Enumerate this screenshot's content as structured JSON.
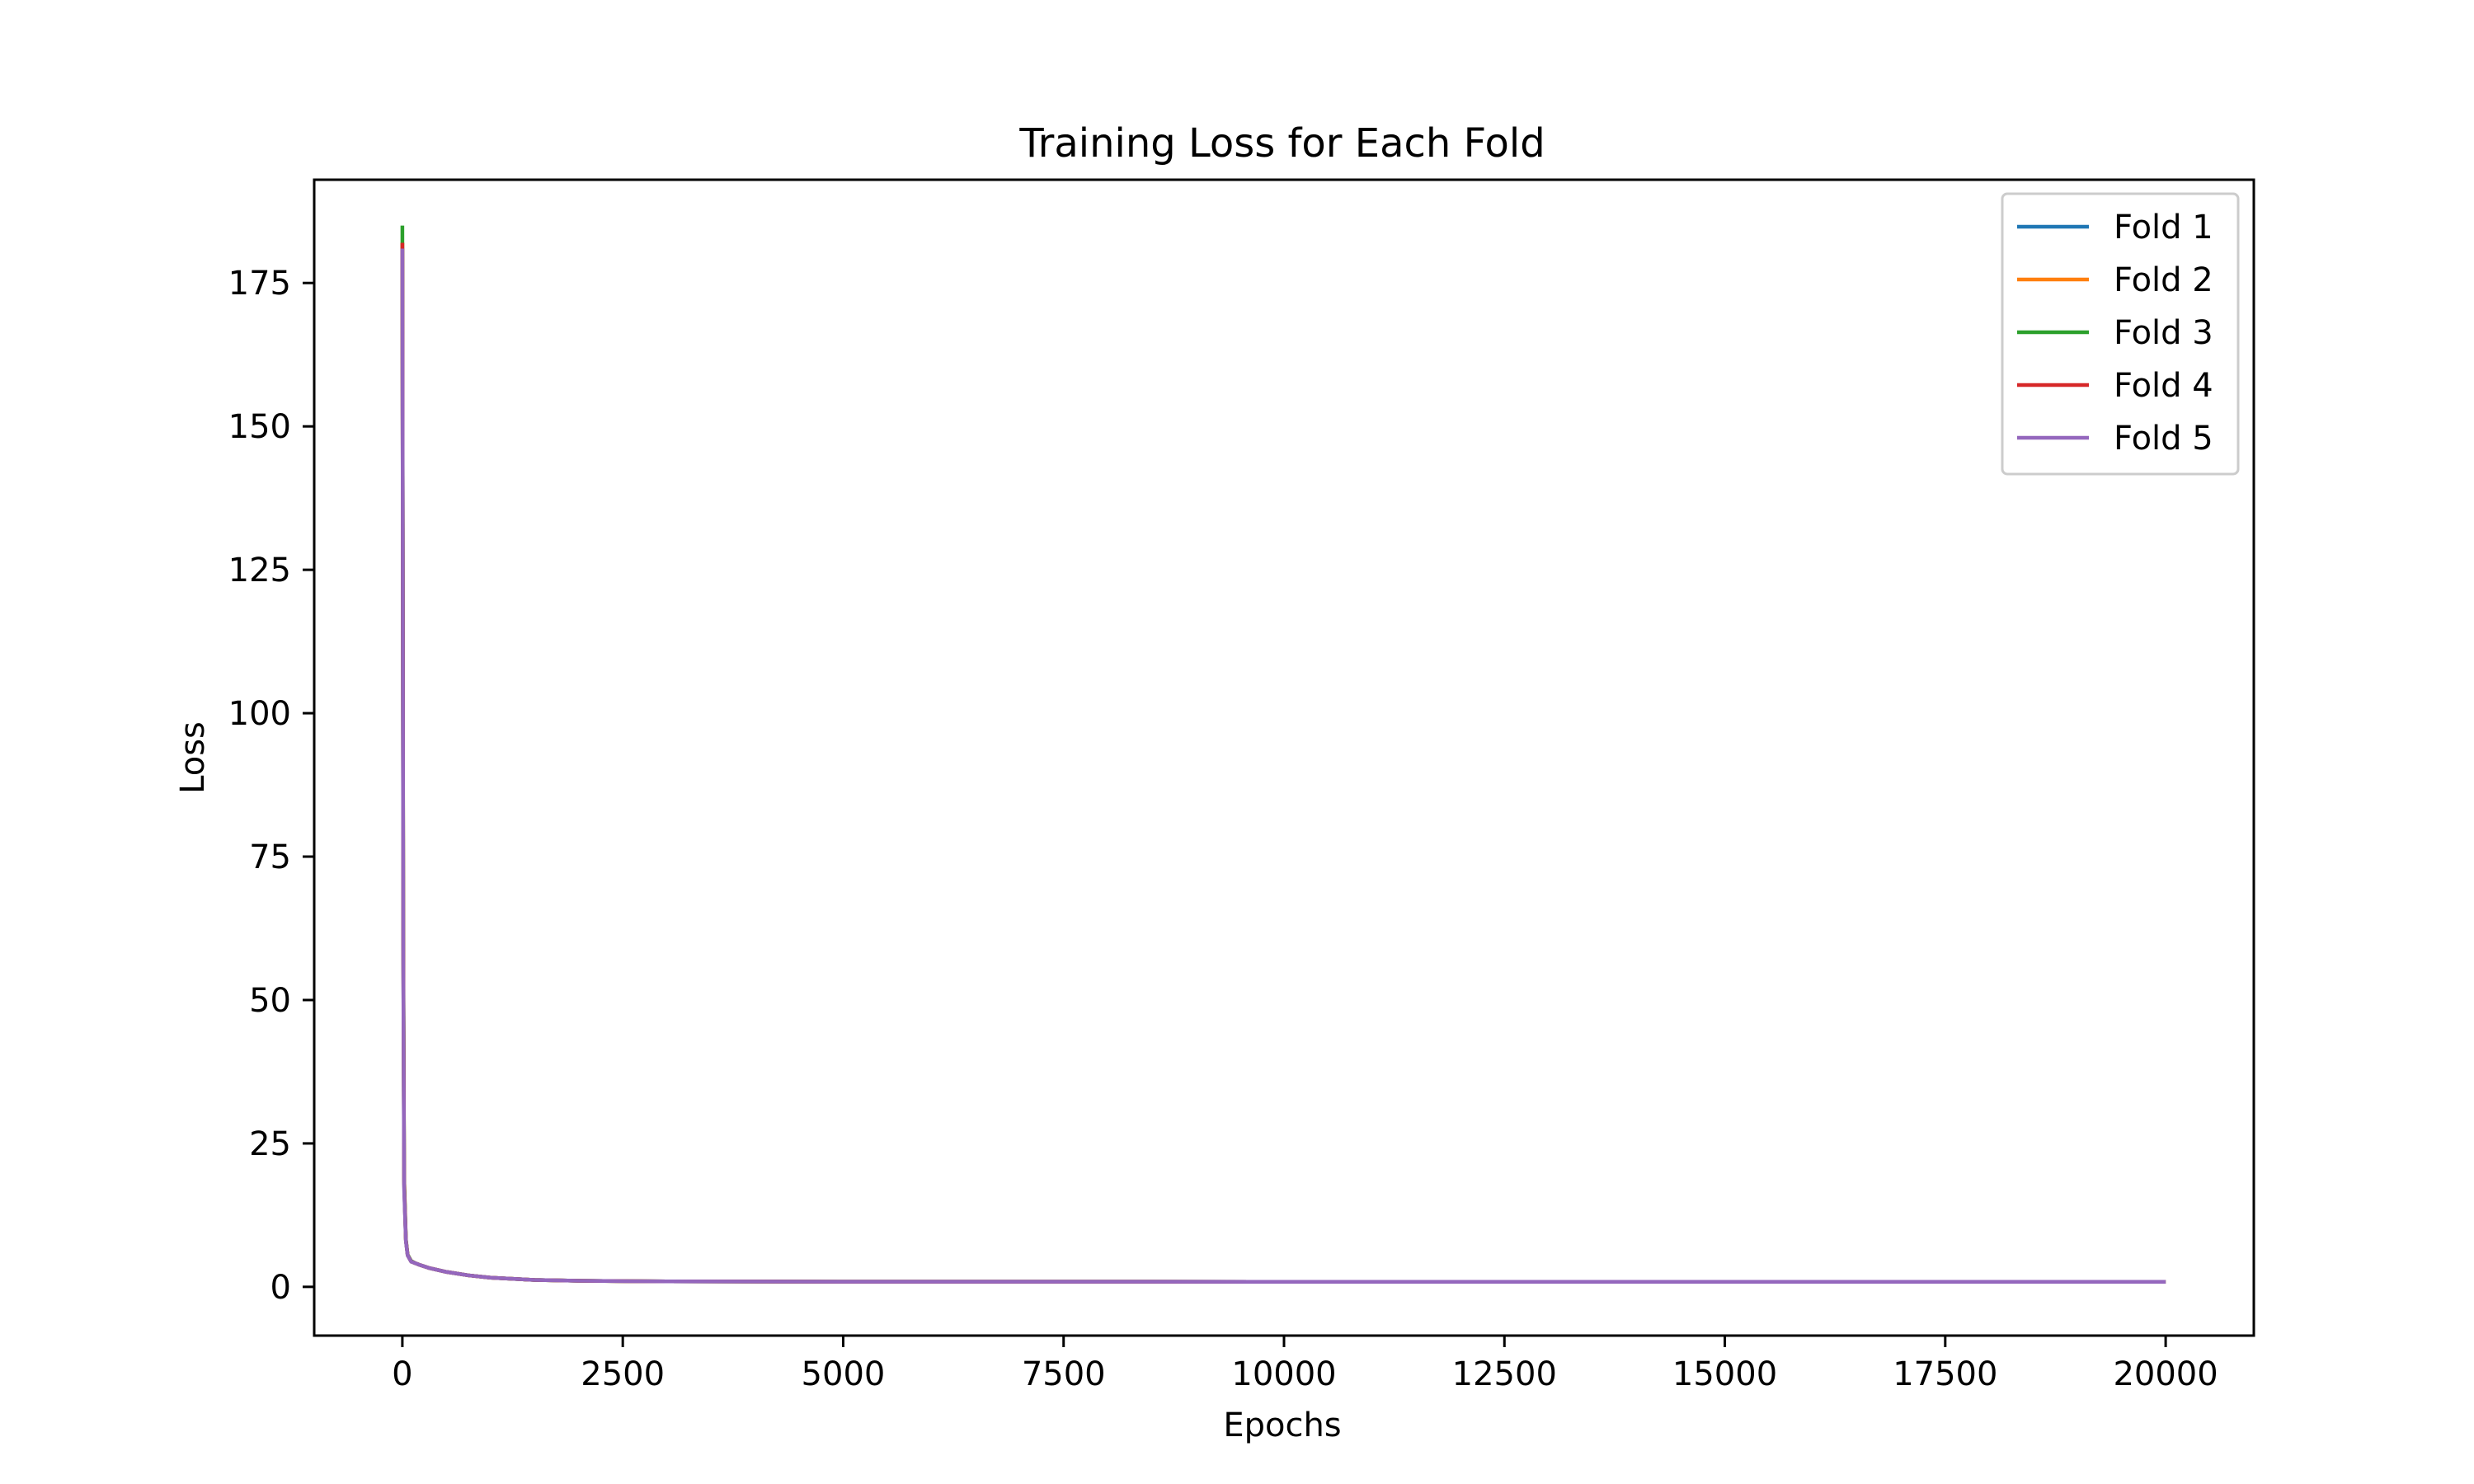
{
  "chart_data": {
    "type": "line",
    "title": "Training Loss for Each Fold",
    "xlabel": "Epochs",
    "ylabel": "Loss",
    "xlim": [
      -1000,
      21000
    ],
    "ylim": [
      -8.5,
      193
    ],
    "xticks": [
      0,
      2500,
      5000,
      7500,
      10000,
      12500,
      15000,
      17500,
      20000
    ],
    "yticks": [
      0,
      25,
      50,
      75,
      100,
      125,
      150,
      175
    ],
    "xtick_labels": [
      "0",
      "2500",
      "5000",
      "7500",
      "10000",
      "12500",
      "15000",
      "17500",
      "20000"
    ],
    "ytick_labels": [
      "0",
      "25",
      "50",
      "75",
      "100",
      "125",
      "150",
      "175"
    ],
    "grid": false,
    "legend_position": "top-right",
    "series": [
      {
        "name": "Fold 1",
        "color": "#1f77b4",
        "x": [
          0,
          10,
          20,
          40,
          60,
          100,
          150,
          200,
          300,
          500,
          750,
          1000,
          1500,
          2000,
          3000,
          5000,
          7500,
          10000,
          12500,
          15000,
          17500,
          20000
        ],
        "y": [
          181,
          60,
          18,
          8,
          5.5,
          4.4,
          4.1,
          3.8,
          3.3,
          2.6,
          2.0,
          1.6,
          1.2,
          1.05,
          0.95,
          0.9,
          0.9,
          0.88,
          0.88,
          0.87,
          0.87,
          0.87
        ]
      },
      {
        "name": "Fold 2",
        "color": "#ff7f0e",
        "x": [
          0,
          10,
          20,
          40,
          60,
          100,
          150,
          200,
          300,
          500,
          750,
          1000,
          1500,
          2000,
          3000,
          5000,
          7500,
          10000,
          12500,
          15000,
          17500,
          20000
        ],
        "y": [
          182,
          62,
          19,
          8.2,
          5.6,
          4.5,
          4.1,
          3.8,
          3.3,
          2.6,
          2.0,
          1.6,
          1.2,
          1.05,
          0.95,
          0.9,
          0.9,
          0.88,
          0.88,
          0.87,
          0.87,
          0.87
        ]
      },
      {
        "name": "Fold 3",
        "color": "#2ca02c",
        "x": [
          0,
          10,
          20,
          40,
          60,
          100,
          150,
          200,
          300,
          500,
          750,
          1000,
          1500,
          2000,
          3000,
          5000,
          7500,
          10000,
          12500,
          15000,
          17500,
          20000
        ],
        "y": [
          185,
          64,
          19,
          8.3,
          5.6,
          4.5,
          4.1,
          3.8,
          3.3,
          2.6,
          2.0,
          1.6,
          1.2,
          1.05,
          0.95,
          0.9,
          0.9,
          0.88,
          0.88,
          0.87,
          0.87,
          0.87
        ]
      },
      {
        "name": "Fold 4",
        "color": "#d62728",
        "x": [
          0,
          10,
          20,
          40,
          60,
          100,
          150,
          200,
          300,
          500,
          750,
          1000,
          1500,
          2000,
          3000,
          5000,
          7500,
          10000,
          12500,
          15000,
          17500,
          20000
        ],
        "y": [
          182,
          61,
          18,
          8.1,
          5.5,
          4.4,
          4.1,
          3.8,
          3.3,
          2.6,
          2.0,
          1.6,
          1.2,
          1.05,
          0.95,
          0.9,
          0.9,
          0.88,
          0.88,
          0.87,
          0.87,
          0.87
        ]
      },
      {
        "name": "Fold 5",
        "color": "#9467bd",
        "x": [
          0,
          10,
          20,
          40,
          60,
          100,
          150,
          200,
          300,
          500,
          750,
          1000,
          1500,
          2000,
          3000,
          5000,
          7500,
          10000,
          12500,
          15000,
          17500,
          20000
        ],
        "y": [
          181,
          58,
          17,
          8,
          5.5,
          4.4,
          4.1,
          3.8,
          3.3,
          2.6,
          2.0,
          1.6,
          1.2,
          1.05,
          0.95,
          0.9,
          0.9,
          0.88,
          0.88,
          0.87,
          0.87,
          0.87
        ]
      }
    ]
  }
}
